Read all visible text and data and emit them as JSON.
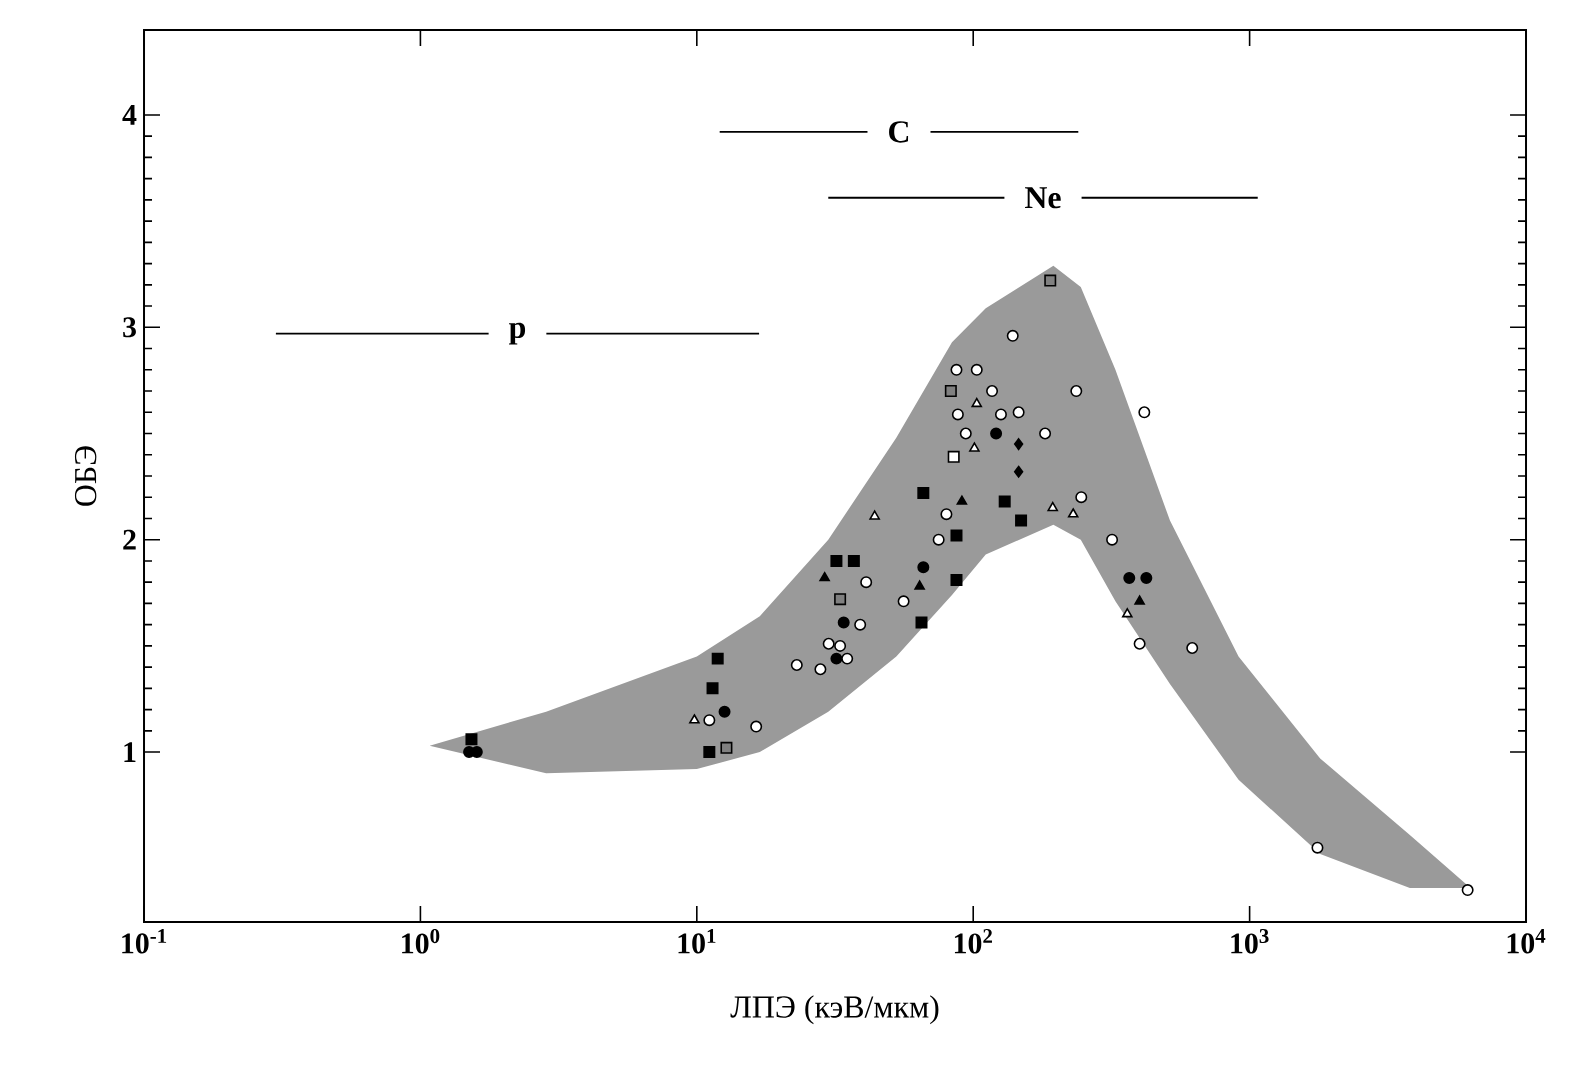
{
  "chart_data": {
    "type": "scatter",
    "xlabel": "ЛПЭ (кэВ/мкм)",
    "ylabel": "ОБЭ",
    "log": "x",
    "xlim": [
      0.1,
      10000
    ],
    "ylim": [
      0.2,
      4.4
    ],
    "xticks": [
      {
        "value": 0.1,
        "label": "10$^{-1}$"
      },
      {
        "value": 1,
        "label": "10$^{0}$"
      },
      {
        "value": 10,
        "label": "10$^{1}$"
      },
      {
        "value": 100,
        "label": "10$^{2}$"
      },
      {
        "value": 1000,
        "label": "10$^{3}$"
      },
      {
        "value": 10000,
        "label": "10$^{4}$"
      }
    ],
    "yticks": [
      1,
      2,
      3,
      4
    ],
    "series": [
      {
        "type": "area",
        "color": "#9a9a9a",
        "x": [
          1.08,
          2.85,
          10,
          16.9,
          29.9,
          52.7,
          83.8,
          111,
          195,
          245,
          327,
          515,
          912,
          1800,
          3800,
          6300
        ],
        "values": [
          null,
          null,
          null,
          null,
          null,
          null,
          null,
          null,
          null,
          null,
          null,
          null,
          null,
          null,
          null,
          null
        ],
        "upper": [
          1.03,
          1.19,
          1.45,
          1.64,
          2.0,
          2.48,
          2.93,
          3.09,
          3.29,
          3.19,
          2.8,
          2.09,
          1.45,
          0.97,
          0.61,
          0.36
        ],
        "lower": [
          1.03,
          0.9,
          0.92,
          1.0,
          1.19,
          1.45,
          1.74,
          1.93,
          2.07,
          2.0,
          1.71,
          1.32,
          0.87,
          0.52,
          0.36,
          0.36
        ]
      },
      {
        "color": "#000000",
        "marker": "circle",
        "x": [
          1.5,
          1.6,
          12.6,
          34,
          32,
          121,
          66,
          367,
          423
        ],
        "values": [
          1.0,
          1.0,
          1.19,
          1.61,
          1.44,
          2.5,
          1.87,
          1.82,
          1.82
        ]
      },
      {
        "color": "#ffffff",
        "marker": "circle",
        "x": [
          11.1,
          16.4,
          23,
          28,
          30,
          33,
          35,
          39,
          41,
          56,
          75,
          80,
          88,
          87,
          94,
          103,
          117,
          126,
          146,
          139,
          182,
          236,
          246,
          318,
          400,
          416,
          620,
          1760,
          6150
        ],
        "values": [
          1.15,
          1.12,
          1.41,
          1.39,
          1.51,
          1.5,
          1.44,
          1.6,
          1.8,
          1.71,
          2.0,
          2.12,
          2.59,
          2.8,
          2.5,
          2.8,
          2.7,
          2.59,
          2.6,
          2.96,
          2.5,
          2.7,
          2.2,
          2.0,
          1.51,
          2.6,
          1.49,
          0.55,
          0.35
        ]
      },
      {
        "color": "#000000",
        "marker": "square",
        "x": [
          1.53,
          11.9,
          11.4,
          11.1,
          32,
          37,
          65,
          66,
          87,
          87,
          130,
          149
        ],
        "values": [
          1.06,
          1.44,
          1.3,
          1.0,
          1.9,
          1.9,
          1.61,
          2.22,
          2.02,
          1.81,
          2.18,
          2.09
        ]
      },
      {
        "color": "#808080",
        "marker": "square",
        "x": [
          12.8,
          33,
          83,
          190
        ],
        "values": [
          1.02,
          1.72,
          2.7,
          3.22
        ]
      },
      {
        "color": "#ffffff",
        "marker": "square",
        "x": [
          85
        ],
        "values": [
          2.39
        ]
      },
      {
        "color": "#ffffff",
        "marker": "triangle",
        "x": [
          9.8,
          44,
          103,
          101,
          194,
          230,
          361
        ],
        "values": [
          1.15,
          2.11,
          2.64,
          2.43,
          2.15,
          2.12,
          1.65
        ]
      },
      {
        "color": "#000000",
        "marker": "triangle",
        "x": [
          29,
          64,
          91,
          400
        ],
        "values": [
          1.82,
          1.78,
          2.18,
          1.71
        ]
      },
      {
        "color": "#000000",
        "marker": "diamond",
        "x": [
          146,
          146
        ],
        "values": [
          2.45,
          2.32
        ]
      },
      {
        "type": "line",
        "name": "p",
        "color": "#000000",
        "x": [
          0.3,
          16.8
        ],
        "values": [
          2.97,
          2.97
        ]
      },
      {
        "type": "line",
        "name": "C",
        "color": "#000000",
        "x": [
          12.1,
          240
        ],
        "values": [
          3.92,
          3.92
        ]
      },
      {
        "type": "line",
        "name": "Ne",
        "color": "#000000",
        "x": [
          29.9,
          1070
        ],
        "values": [
          3.61,
          3.61
        ]
      }
    ]
  }
}
